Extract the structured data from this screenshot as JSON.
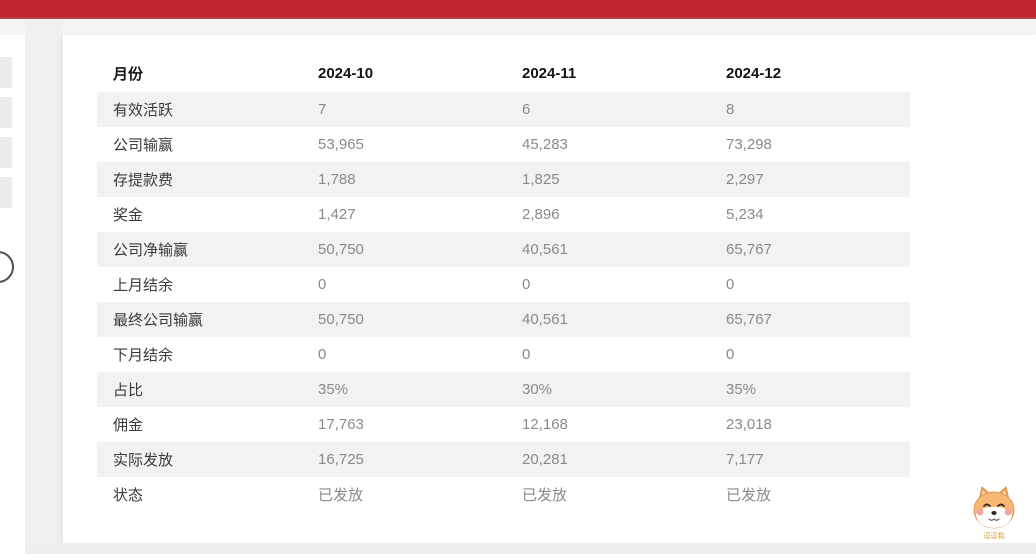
{
  "topbar": {
    "color": "#c2262e"
  },
  "table": {
    "header": [
      "月份",
      "2024-10",
      "2024-11",
      "2024-12"
    ],
    "rows": [
      {
        "label": "有效活跃",
        "values": [
          "7",
          "6",
          "8"
        ]
      },
      {
        "label": "公司输赢",
        "values": [
          "53,965",
          "45,283",
          "73,298"
        ]
      },
      {
        "label": "存提款费",
        "values": [
          "1,788",
          "1,825",
          "2,297"
        ]
      },
      {
        "label": "奖金",
        "values": [
          "1,427",
          "2,896",
          "5,234"
        ]
      },
      {
        "label": "公司净输赢",
        "values": [
          "50,750",
          "40,561",
          "65,767"
        ]
      },
      {
        "label": "上月结余",
        "values": [
          "0",
          "0",
          "0"
        ]
      },
      {
        "label": "最终公司输赢",
        "values": [
          "50,750",
          "40,561",
          "65,767"
        ]
      },
      {
        "label": "下月结余",
        "values": [
          "0",
          "0",
          "0"
        ]
      },
      {
        "label": "占比",
        "values": [
          "35%",
          "30%",
          "35%"
        ]
      },
      {
        "label": "佣金",
        "values": [
          "17,763",
          "12,168",
          "23,018"
        ]
      },
      {
        "label": "实际发放",
        "values": [
          "16,725",
          "20,281",
          "7,177"
        ]
      },
      {
        "label": "状态",
        "values": [
          "已发放",
          "已发放",
          "已发放"
        ]
      }
    ]
  },
  "mascot": {
    "caption": "逗逗我"
  }
}
